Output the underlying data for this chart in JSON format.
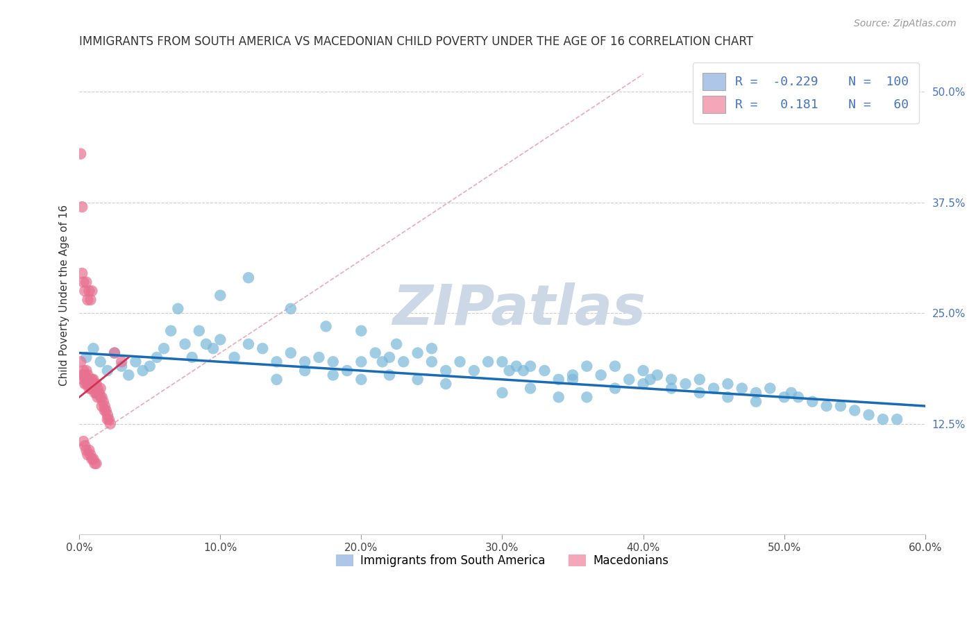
{
  "title": "IMMIGRANTS FROM SOUTH AMERICA VS MACEDONIAN CHILD POVERTY UNDER THE AGE OF 16 CORRELATION CHART",
  "source": "Source: ZipAtlas.com",
  "ylabel": "Child Poverty Under the Age of 16",
  "xlim": [
    0,
    0.6
  ],
  "ylim": [
    0,
    0.54
  ],
  "yticks": [
    0.125,
    0.25,
    0.375,
    0.5
  ],
  "ytick_labels": [
    "12.5%",
    "25.0%",
    "37.5%",
    "50.0%"
  ],
  "xticks": [
    0.0,
    0.1,
    0.2,
    0.3,
    0.4,
    0.5,
    0.6
  ],
  "xtick_labels": [
    "0.0%",
    "10.0%",
    "20.0%",
    "30.0%",
    "40.0%",
    "50.0%",
    "60.0%"
  ],
  "blue_R": -0.229,
  "blue_N": 100,
  "pink_R": 0.181,
  "pink_N": 60,
  "blue_color": "#aec6e8",
  "pink_color": "#f4a7b9",
  "blue_dot_color": "#7ab8d9",
  "pink_dot_color": "#e87090",
  "trend_blue_color": "#1a6bb5",
  "trend_pink_color": "#cc3355",
  "ref_line_color": "#e8a0b0",
  "watermark_color": "#ccd8e5",
  "legend_label_blue": "Immigrants from South America",
  "legend_label_pink": "Macedonians",
  "blue_scatter_x": [
    0.005,
    0.01,
    0.015,
    0.02,
    0.025,
    0.03,
    0.035,
    0.04,
    0.045,
    0.05,
    0.055,
    0.06,
    0.065,
    0.07,
    0.075,
    0.08,
    0.085,
    0.09,
    0.095,
    0.1,
    0.11,
    0.12,
    0.13,
    0.14,
    0.15,
    0.16,
    0.17,
    0.18,
    0.19,
    0.2,
    0.21,
    0.215,
    0.22,
    0.23,
    0.24,
    0.25,
    0.26,
    0.27,
    0.28,
    0.29,
    0.3,
    0.305,
    0.31,
    0.315,
    0.32,
    0.33,
    0.34,
    0.35,
    0.36,
    0.37,
    0.38,
    0.39,
    0.4,
    0.405,
    0.41,
    0.42,
    0.43,
    0.44,
    0.45,
    0.46,
    0.47,
    0.48,
    0.49,
    0.5,
    0.505,
    0.51,
    0.52,
    0.53,
    0.54,
    0.55,
    0.56,
    0.57,
    0.58,
    0.1,
    0.12,
    0.15,
    0.175,
    0.2,
    0.225,
    0.25,
    0.14,
    0.16,
    0.18,
    0.2,
    0.22,
    0.24,
    0.26,
    0.35,
    0.38,
    0.4,
    0.42,
    0.44,
    0.46,
    0.48,
    0.3,
    0.32,
    0.34,
    0.36
  ],
  "blue_scatter_y": [
    0.2,
    0.21,
    0.195,
    0.185,
    0.205,
    0.19,
    0.18,
    0.195,
    0.185,
    0.19,
    0.2,
    0.21,
    0.23,
    0.255,
    0.215,
    0.2,
    0.23,
    0.215,
    0.21,
    0.22,
    0.2,
    0.215,
    0.21,
    0.195,
    0.205,
    0.195,
    0.2,
    0.195,
    0.185,
    0.195,
    0.205,
    0.195,
    0.2,
    0.195,
    0.205,
    0.195,
    0.185,
    0.195,
    0.185,
    0.195,
    0.195,
    0.185,
    0.19,
    0.185,
    0.19,
    0.185,
    0.175,
    0.18,
    0.19,
    0.18,
    0.19,
    0.175,
    0.185,
    0.175,
    0.18,
    0.175,
    0.17,
    0.175,
    0.165,
    0.17,
    0.165,
    0.16,
    0.165,
    0.155,
    0.16,
    0.155,
    0.15,
    0.145,
    0.145,
    0.14,
    0.135,
    0.13,
    0.13,
    0.27,
    0.29,
    0.255,
    0.235,
    0.23,
    0.215,
    0.21,
    0.175,
    0.185,
    0.18,
    0.175,
    0.18,
    0.175,
    0.17,
    0.175,
    0.165,
    0.17,
    0.165,
    0.16,
    0.155,
    0.15,
    0.16,
    0.165,
    0.155,
    0.155
  ],
  "pink_scatter_x": [
    0.001,
    0.001,
    0.002,
    0.002,
    0.003,
    0.003,
    0.004,
    0.004,
    0.005,
    0.005,
    0.005,
    0.006,
    0.006,
    0.007,
    0.007,
    0.008,
    0.008,
    0.009,
    0.009,
    0.01,
    0.01,
    0.011,
    0.011,
    0.012,
    0.012,
    0.013,
    0.013,
    0.014,
    0.015,
    0.015,
    0.016,
    0.016,
    0.017,
    0.018,
    0.018,
    0.019,
    0.02,
    0.02,
    0.021,
    0.022,
    0.003,
    0.004,
    0.005,
    0.006,
    0.007,
    0.008,
    0.009,
    0.01,
    0.011,
    0.012,
    0.002,
    0.003,
    0.004,
    0.005,
    0.006,
    0.007,
    0.008,
    0.009,
    0.025,
    0.03
  ],
  "pink_scatter_y": [
    0.43,
    0.195,
    0.37,
    0.18,
    0.185,
    0.175,
    0.18,
    0.17,
    0.185,
    0.17,
    0.175,
    0.18,
    0.17,
    0.175,
    0.165,
    0.175,
    0.165,
    0.175,
    0.165,
    0.175,
    0.165,
    0.17,
    0.16,
    0.17,
    0.16,
    0.165,
    0.155,
    0.16,
    0.165,
    0.155,
    0.155,
    0.145,
    0.15,
    0.145,
    0.14,
    0.14,
    0.135,
    0.13,
    0.13,
    0.125,
    0.105,
    0.1,
    0.095,
    0.09,
    0.095,
    0.09,
    0.085,
    0.085,
    0.08,
    0.08,
    0.295,
    0.285,
    0.275,
    0.285,
    0.265,
    0.275,
    0.265,
    0.275,
    0.205,
    0.195
  ]
}
